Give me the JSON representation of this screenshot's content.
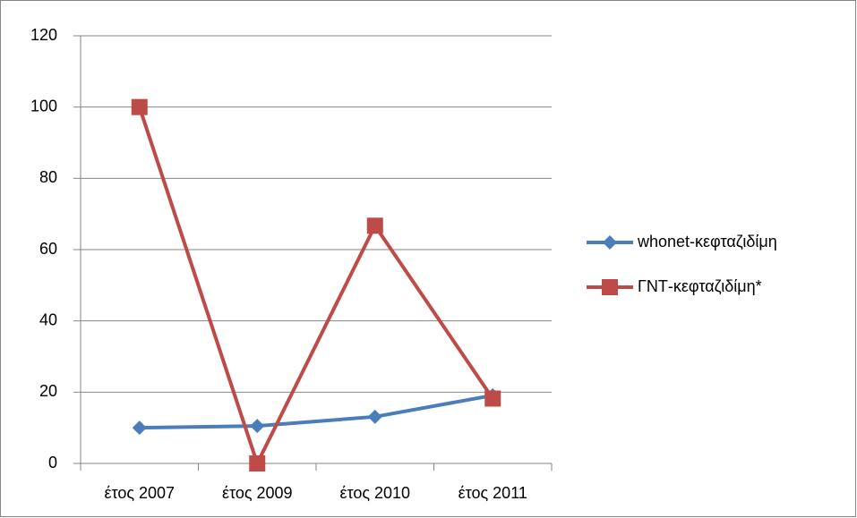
{
  "chart_data": {
    "type": "line",
    "categories": [
      "έτος 2007",
      "έτος 2009",
      "έτος 2010",
      "έτος 2011"
    ],
    "series": [
      {
        "name": "whonet-κεφταζιδίμη",
        "color": "#4a7ebb",
        "marker": "diamond",
        "values": [
          10,
          10.5,
          13.1,
          19.1
        ]
      },
      {
        "name": "ΓΝΤ-κεφταζιδίμη*",
        "color": "#be4b48",
        "marker": "square",
        "values": [
          100,
          0,
          66.7,
          18.2
        ]
      }
    ],
    "ylim": [
      0,
      120
    ],
    "yticks": [
      0,
      20,
      40,
      60,
      80,
      100,
      120
    ],
    "grid": true,
    "legend": "right"
  }
}
